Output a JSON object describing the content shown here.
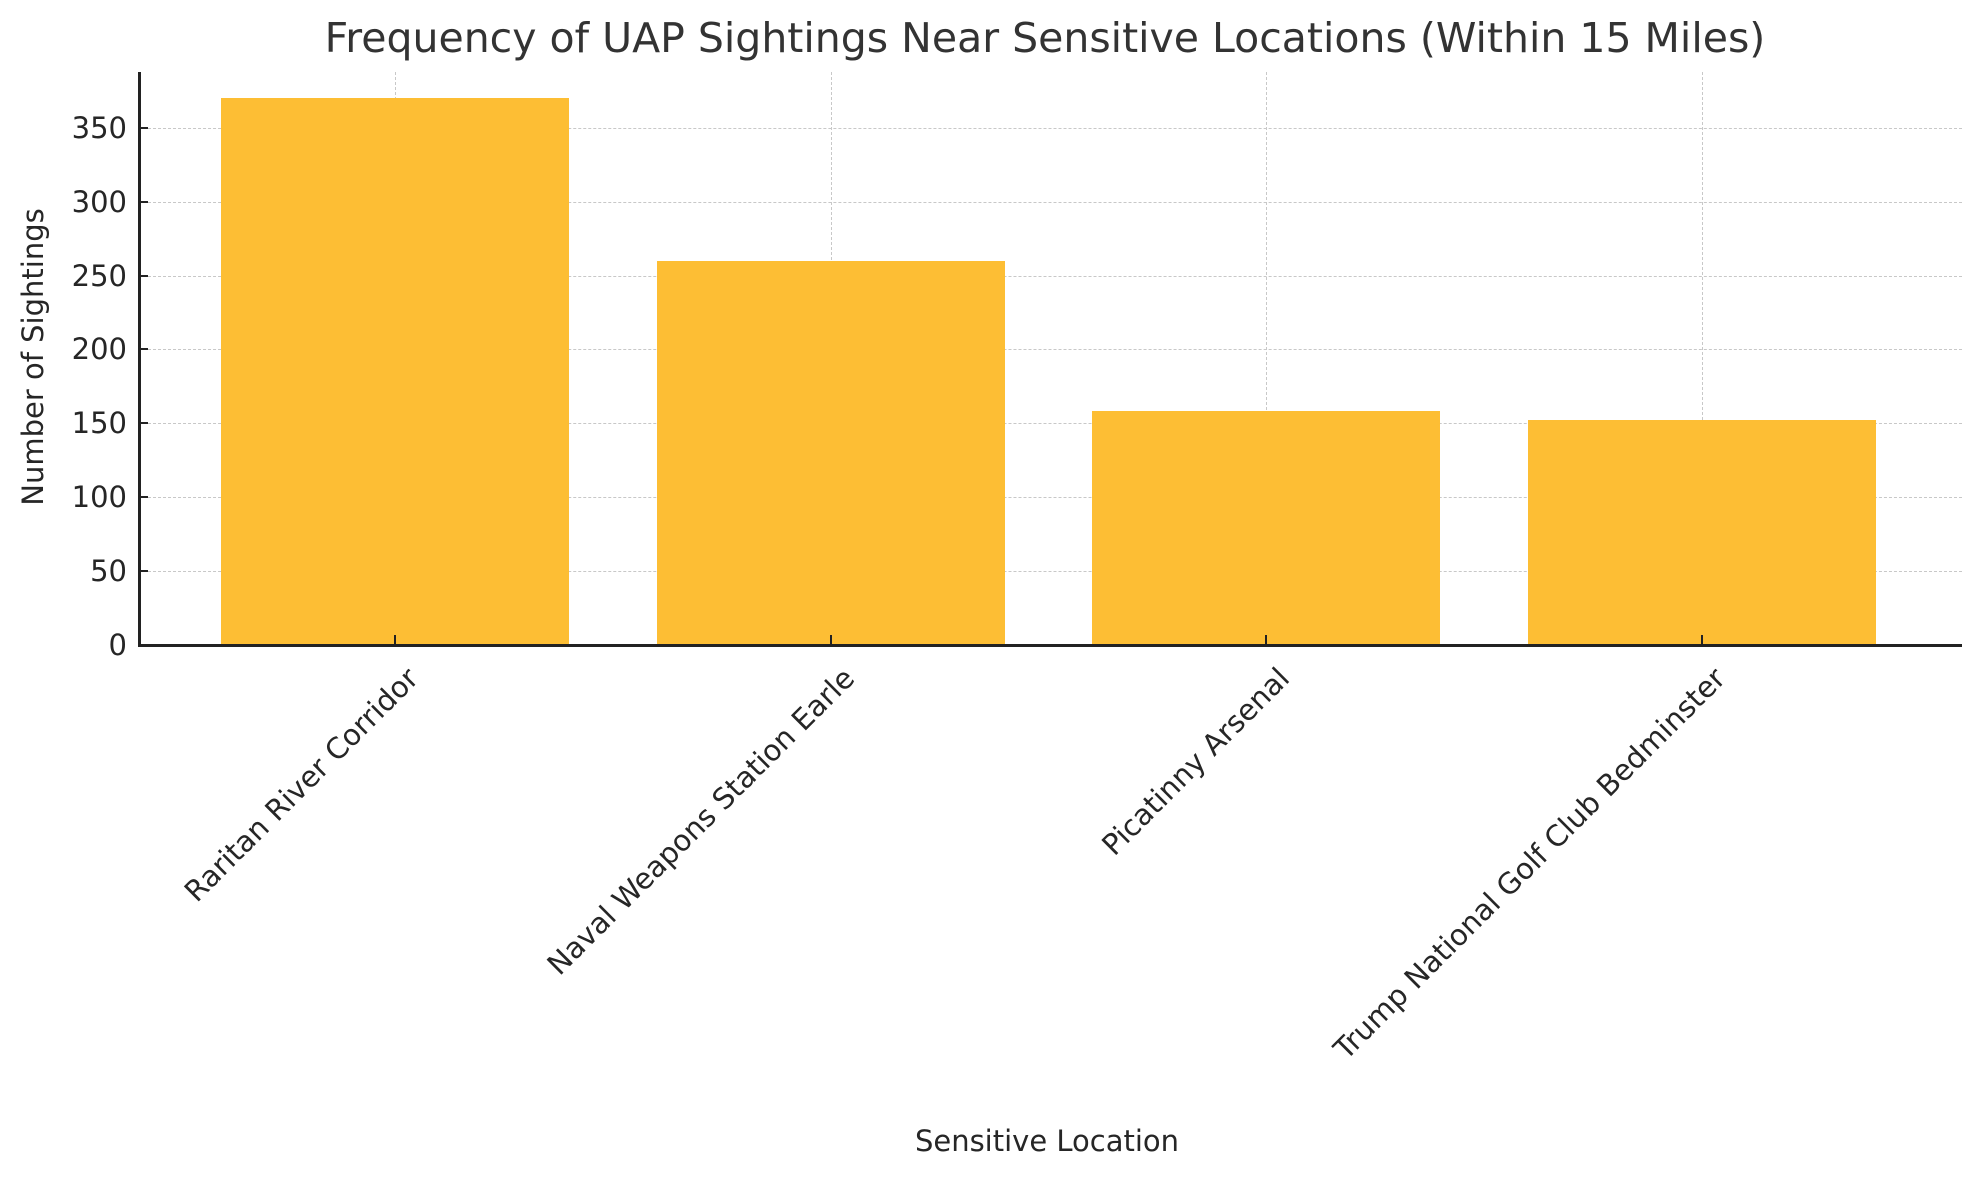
{
  "chart_data": {
    "type": "bar",
    "title": "Frequency of UAP Sightings Near Sensitive Locations (Within 15 Miles)",
    "xlabel": "Sensitive Location",
    "ylabel": "Number of Sightings",
    "categories": [
      "Raritan River Corridor",
      "Naval Weapons Station Earle",
      "Picatinny Arsenal",
      "Trump National Golf Club Bedminster"
    ],
    "values": [
      370,
      260,
      158,
      152
    ],
    "ylim": [
      0,
      388
    ],
    "yticks": [
      0,
      50,
      100,
      150,
      200,
      250,
      300,
      350
    ],
    "grid": true,
    "grid_style": "dashed",
    "legend": null,
    "bar_color": "#FDBE34",
    "xtick_rotation": 45
  }
}
